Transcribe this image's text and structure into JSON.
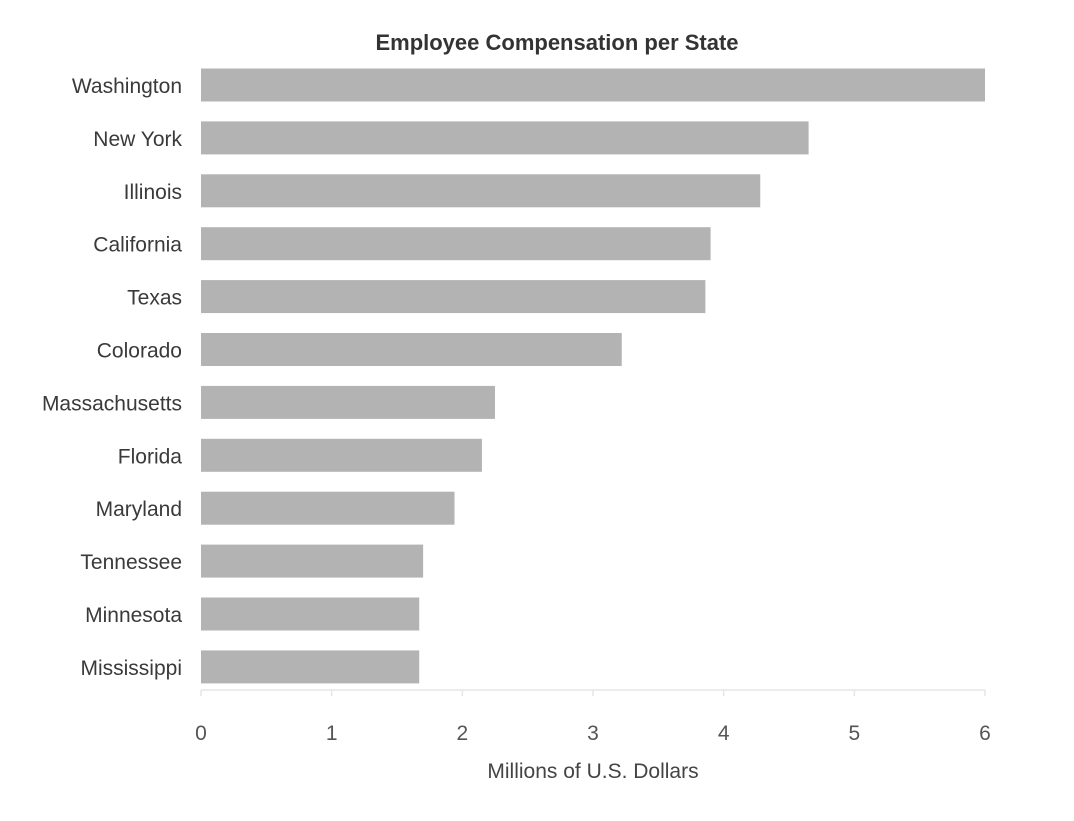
{
  "chart_data": {
    "type": "bar",
    "orientation": "horizontal",
    "title": "Employee Compensation per State",
    "xlabel": "Millions of U.S. Dollars",
    "ylabel": "",
    "categories": [
      "Washington",
      "New York",
      "Illinois",
      "California",
      "Texas",
      "Colorado",
      "Massachusetts",
      "Florida",
      "Maryland",
      "Tennessee",
      "Minnesota",
      "Mississippi"
    ],
    "values": [
      6.0,
      4.65,
      4.28,
      3.9,
      3.86,
      3.22,
      2.25,
      2.15,
      1.94,
      1.7,
      1.67,
      1.67
    ],
    "xlim": [
      0,
      6
    ],
    "xticks": [
      "0",
      "1",
      "2",
      "3",
      "4",
      "5",
      "6"
    ],
    "grid": false,
    "legend": "none",
    "bar_color": "#b3b3b3"
  }
}
